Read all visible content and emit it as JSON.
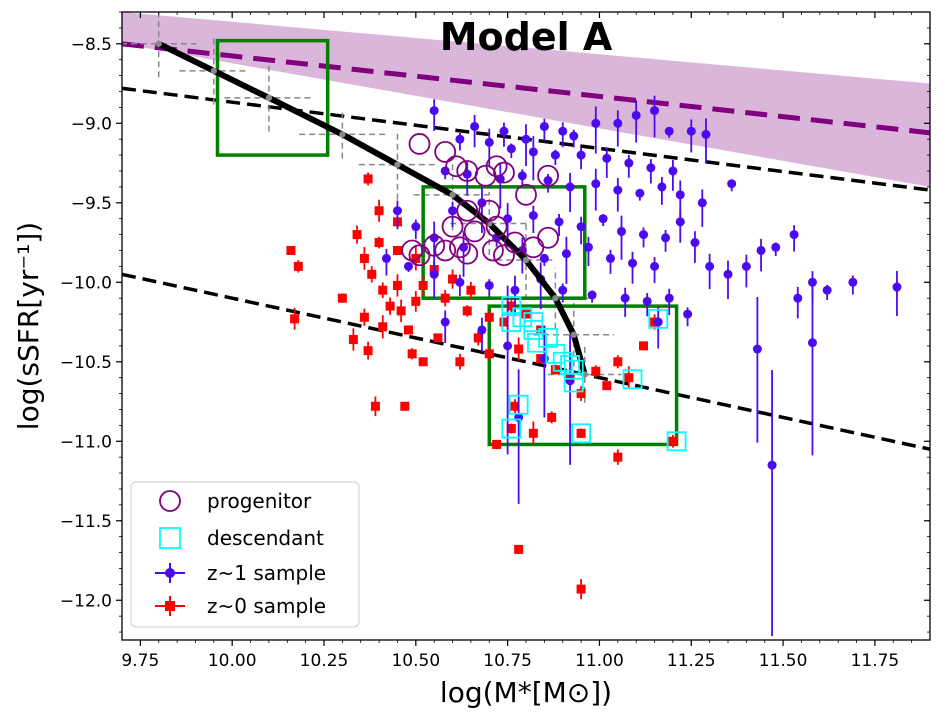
{
  "chart_data": {
    "type": "scatter",
    "title": "Model A",
    "xlabel": "log(M*[M⊙])",
    "ylabel": "log(sSFR[yr⁻¹])",
    "xlim": [
      9.7,
      11.9
    ],
    "ylim": [
      -12.25,
      -8.3
    ],
    "x_ticks": [
      9.75,
      10.0,
      10.25,
      10.5,
      10.75,
      11.0,
      11.25,
      11.5,
      11.75
    ],
    "x_tick_labels": [
      "9.75",
      "10.00",
      "10.25",
      "10.50",
      "10.75",
      "11.00",
      "11.25",
      "11.50",
      "11.75"
    ],
    "y_ticks": [
      -8.5,
      -9.0,
      -9.5,
      -10.0,
      -10.5,
      -11.0,
      -11.5,
      -12.0
    ],
    "y_tick_labels": [
      "−8.5",
      "−9.0",
      "−9.5",
      "−10.0",
      "−10.5",
      "−11.0",
      "−11.5",
      "−12.0"
    ],
    "legend": {
      "position": "lower-left",
      "entries": [
        {
          "label": "progenitor",
          "marker": "open-circle",
          "color": "#800080"
        },
        {
          "label": "descendant",
          "marker": "open-square",
          "color": "#00ffff"
        },
        {
          "label": "z~1 sample",
          "marker": "circle-errorbar",
          "color": "#4b0af0"
        },
        {
          "label": "z~0 sample",
          "marker": "square-errorbar",
          "color": "#ff0000"
        }
      ]
    },
    "band": {
      "color": "#d8b2d8",
      "lower": [
        [
          9.7,
          -8.5
        ],
        [
          11.9,
          -9.4
        ]
      ],
      "upper": [
        [
          9.7,
          -8.3
        ],
        [
          11.9,
          -8.75
        ]
      ],
      "center_dashed": [
        [
          9.7,
          -8.5
        ],
        [
          11.9,
          -9.06
        ]
      ],
      "center_color": "#800080"
    },
    "dashed_lines": [
      {
        "name": "upper",
        "points": [
          [
            9.7,
            -8.78
          ],
          [
            11.9,
            -9.42
          ]
        ],
        "color": "#000000"
      },
      {
        "name": "lower",
        "points": [
          [
            9.7,
            -9.95
          ],
          [
            11.9,
            -11.05
          ]
        ],
        "color": "#000000"
      }
    ],
    "evolution_track": {
      "color": "#000000",
      "points": [
        [
          9.8,
          -8.5
        ],
        [
          9.95,
          -8.67
        ],
        [
          10.1,
          -8.84
        ],
        [
          10.3,
          -9.07
        ],
        [
          10.45,
          -9.26
        ],
        [
          10.6,
          -9.45
        ],
        [
          10.7,
          -9.63
        ],
        [
          10.8,
          -9.86
        ],
        [
          10.88,
          -10.1
        ],
        [
          10.93,
          -10.33
        ],
        [
          10.96,
          -10.58
        ]
      ]
    },
    "green_boxes": [
      {
        "x": [
          9.96,
          10.26
        ],
        "y": [
          -9.2,
          -8.48
        ]
      },
      {
        "x": [
          10.52,
          10.96
        ],
        "y": [
          -10.1,
          -9.4
        ]
      },
      {
        "x": [
          10.7,
          11.21
        ],
        "y": [
          -11.02,
          -10.15
        ]
      }
    ],
    "z1_sample": {
      "color": "#4b0af0",
      "points": [
        [
          10.55,
          -8.92
        ],
        [
          10.66,
          -9.02
        ],
        [
          10.74,
          -9.05
        ],
        [
          10.8,
          -9.1
        ],
        [
          10.85,
          -9.02
        ],
        [
          10.9,
          -9.05
        ],
        [
          10.93,
          -9.08
        ],
        [
          10.99,
          -9.0
        ],
        [
          11.05,
          -9.0
        ],
        [
          11.1,
          -8.95
        ],
        [
          11.15,
          -8.92
        ],
        [
          11.19,
          -9.05
        ],
        [
          11.25,
          -9.05
        ],
        [
          11.29,
          -9.07
        ],
        [
          10.62,
          -9.1
        ],
        [
          10.7,
          -9.12
        ],
        [
          10.76,
          -9.16
        ],
        [
          10.82,
          -9.18
        ],
        [
          10.88,
          -9.2
        ],
        [
          10.95,
          -9.2
        ],
        [
          11.02,
          -9.22
        ],
        [
          11.08,
          -9.25
        ],
        [
          11.14,
          -9.28
        ],
        [
          11.2,
          -9.3
        ],
        [
          10.58,
          -9.3
        ],
        [
          10.64,
          -9.32
        ],
        [
          10.73,
          -9.35
        ],
        [
          10.79,
          -9.33
        ],
        [
          10.86,
          -9.36
        ],
        [
          10.92,
          -9.4
        ],
        [
          10.99,
          -9.38
        ],
        [
          11.05,
          -9.42
        ],
        [
          11.11,
          -9.44
        ],
        [
          11.17,
          -9.4
        ],
        [
          11.22,
          -9.45
        ],
        [
          11.28,
          -9.5
        ],
        [
          11.36,
          -9.38
        ],
        [
          10.6,
          -9.55
        ],
        [
          10.68,
          -9.5
        ],
        [
          10.75,
          -9.6
        ],
        [
          10.82,
          -9.58
        ],
        [
          10.89,
          -9.62
        ],
        [
          10.95,
          -9.65
        ],
        [
          11.01,
          -9.6
        ],
        [
          11.06,
          -9.68
        ],
        [
          11.12,
          -9.7
        ],
        [
          11.18,
          -9.72
        ],
        [
          11.22,
          -9.62
        ],
        [
          11.26,
          -9.75
        ],
        [
          10.45,
          -9.55
        ],
        [
          10.5,
          -9.65
        ],
        [
          10.55,
          -9.72
        ],
        [
          10.63,
          -9.78
        ],
        [
          10.72,
          -9.72
        ],
        [
          10.79,
          -9.8
        ],
        [
          10.85,
          -9.85
        ],
        [
          10.91,
          -9.82
        ],
        [
          10.97,
          -9.78
        ],
        [
          11.03,
          -9.85
        ],
        [
          11.09,
          -9.88
        ],
        [
          11.15,
          -9.9
        ],
        [
          10.42,
          -9.85
        ],
        [
          10.48,
          -9.9
        ],
        [
          10.55,
          -9.95
        ],
        [
          10.62,
          -10.0
        ],
        [
          10.7,
          -10.02
        ],
        [
          10.77,
          -10.05
        ],
        [
          10.84,
          -9.98
        ],
        [
          10.9,
          -10.05
        ],
        [
          10.98,
          -10.08
        ],
        [
          11.07,
          -10.1
        ],
        [
          11.13,
          -10.12
        ],
        [
          11.3,
          -9.9
        ],
        [
          11.35,
          -9.95
        ],
        [
          11.4,
          -9.9
        ],
        [
          11.44,
          -9.8
        ],
        [
          11.48,
          -9.78
        ],
        [
          11.53,
          -9.7
        ],
        [
          11.58,
          -10.0
        ],
        [
          11.62,
          -10.05
        ],
        [
          11.69,
          -10.0
        ],
        [
          11.81,
          -10.03
        ],
        [
          10.58,
          -10.25
        ],
        [
          10.68,
          -10.3
        ],
        [
          10.75,
          -10.4
        ],
        [
          10.85,
          -10.48
        ],
        [
          11.16,
          -10.25
        ],
        [
          11.19,
          -10.1
        ],
        [
          11.24,
          -10.2
        ],
        [
          11.54,
          -10.1
        ],
        [
          11.43,
          -10.42
        ],
        [
          11.58,
          -10.38
        ],
        [
          10.78,
          -10.85
        ],
        [
          10.92,
          -10.62
        ],
        [
          11.47,
          -11.15
        ]
      ]
    },
    "z0_sample": {
      "color": "#ff0000",
      "points": [
        [
          10.16,
          -9.8
        ],
        [
          10.18,
          -9.9
        ],
        [
          10.17,
          -10.23
        ],
        [
          10.3,
          -10.1
        ],
        [
          10.33,
          -10.36
        ],
        [
          10.37,
          -10.43
        ],
        [
          10.39,
          -10.78
        ],
        [
          10.47,
          -10.78
        ],
        [
          10.34,
          -9.7
        ],
        [
          10.36,
          -9.85
        ],
        [
          10.38,
          -9.95
        ],
        [
          10.41,
          -10.05
        ],
        [
          10.43,
          -10.15
        ],
        [
          10.36,
          -10.22
        ],
        [
          10.41,
          -10.28
        ],
        [
          10.46,
          -10.18
        ],
        [
          10.48,
          -10.3
        ],
        [
          10.5,
          -10.12
        ],
        [
          10.45,
          -10.02
        ],
        [
          10.4,
          -9.75
        ],
        [
          10.45,
          -9.8
        ],
        [
          10.5,
          -9.85
        ],
        [
          10.55,
          -9.92
        ],
        [
          10.6,
          -9.98
        ],
        [
          10.65,
          -10.05
        ],
        [
          10.52,
          -10.02
        ],
        [
          10.58,
          -10.1
        ],
        [
          10.64,
          -10.18
        ],
        [
          10.7,
          -10.22
        ],
        [
          10.74,
          -10.25
        ],
        [
          10.37,
          -9.35
        ],
        [
          10.4,
          -9.55
        ],
        [
          10.45,
          -9.62
        ],
        [
          10.49,
          -10.45
        ],
        [
          10.52,
          -10.5
        ],
        [
          10.56,
          -10.35
        ],
        [
          10.62,
          -10.5
        ],
        [
          10.67,
          -10.35
        ],
        [
          10.7,
          -10.45
        ],
        [
          10.76,
          -10.15
        ],
        [
          10.8,
          -10.2
        ],
        [
          10.84,
          -10.3
        ],
        [
          10.78,
          -10.42
        ],
        [
          10.84,
          -10.48
        ],
        [
          10.88,
          -10.55
        ],
        [
          10.92,
          -10.6
        ],
        [
          10.95,
          -10.7
        ],
        [
          10.99,
          -10.56
        ],
        [
          11.02,
          -10.65
        ],
        [
          11.05,
          -10.5
        ],
        [
          11.08,
          -10.6
        ],
        [
          10.77,
          -10.78
        ],
        [
          10.76,
          -10.92
        ],
        [
          10.72,
          -11.02
        ],
        [
          10.82,
          -10.95
        ],
        [
          10.87,
          -10.85
        ],
        [
          10.95,
          -10.95
        ],
        [
          11.05,
          -11.1
        ],
        [
          11.12,
          -10.4
        ],
        [
          11.15,
          -10.25
        ],
        [
          11.2,
          -11.0
        ],
        [
          10.78,
          -11.68
        ],
        [
          10.95,
          -11.93
        ]
      ]
    },
    "progenitors": [
      [
        10.51,
        -9.13
      ],
      [
        10.58,
        -9.18
      ],
      [
        10.61,
        -9.27
      ],
      [
        10.64,
        -9.3
      ],
      [
        10.69,
        -9.33
      ],
      [
        10.72,
        -9.27
      ],
      [
        10.74,
        -9.31
      ],
      [
        10.8,
        -9.45
      ],
      [
        10.86,
        -9.33
      ],
      [
        10.64,
        -9.55
      ],
      [
        10.7,
        -9.55
      ],
      [
        10.72,
        -9.65
      ],
      [
        10.6,
        -9.65
      ],
      [
        10.66,
        -9.68
      ],
      [
        10.62,
        -9.78
      ],
      [
        10.58,
        -9.8
      ],
      [
        10.55,
        -9.77
      ],
      [
        10.49,
        -9.8
      ],
      [
        10.51,
        -9.83
      ],
      [
        10.64,
        -9.82
      ],
      [
        10.71,
        -9.8
      ],
      [
        10.74,
        -9.83
      ],
      [
        10.77,
        -9.75
      ],
      [
        10.82,
        -9.78
      ],
      [
        10.86,
        -9.72
      ]
    ],
    "descendants": [
      [
        10.76,
        -10.15
      ],
      [
        10.79,
        -10.22
      ],
      [
        10.82,
        -10.25
      ],
      [
        10.76,
        -10.25
      ],
      [
        10.82,
        -10.3
      ],
      [
        10.86,
        -10.35
      ],
      [
        10.83,
        -10.38
      ],
      [
        10.88,
        -10.45
      ],
      [
        10.9,
        -10.5
      ],
      [
        10.93,
        -10.55
      ],
      [
        10.93,
        -10.63
      ],
      [
        11.09,
        -10.61
      ],
      [
        11.16,
        -10.23
      ],
      [
        10.78,
        -10.77
      ],
      [
        10.76,
        -10.92
      ],
      [
        10.95,
        -10.95
      ],
      [
        11.21,
        -11.0
      ],
      [
        10.92,
        -10.52
      ]
    ]
  }
}
